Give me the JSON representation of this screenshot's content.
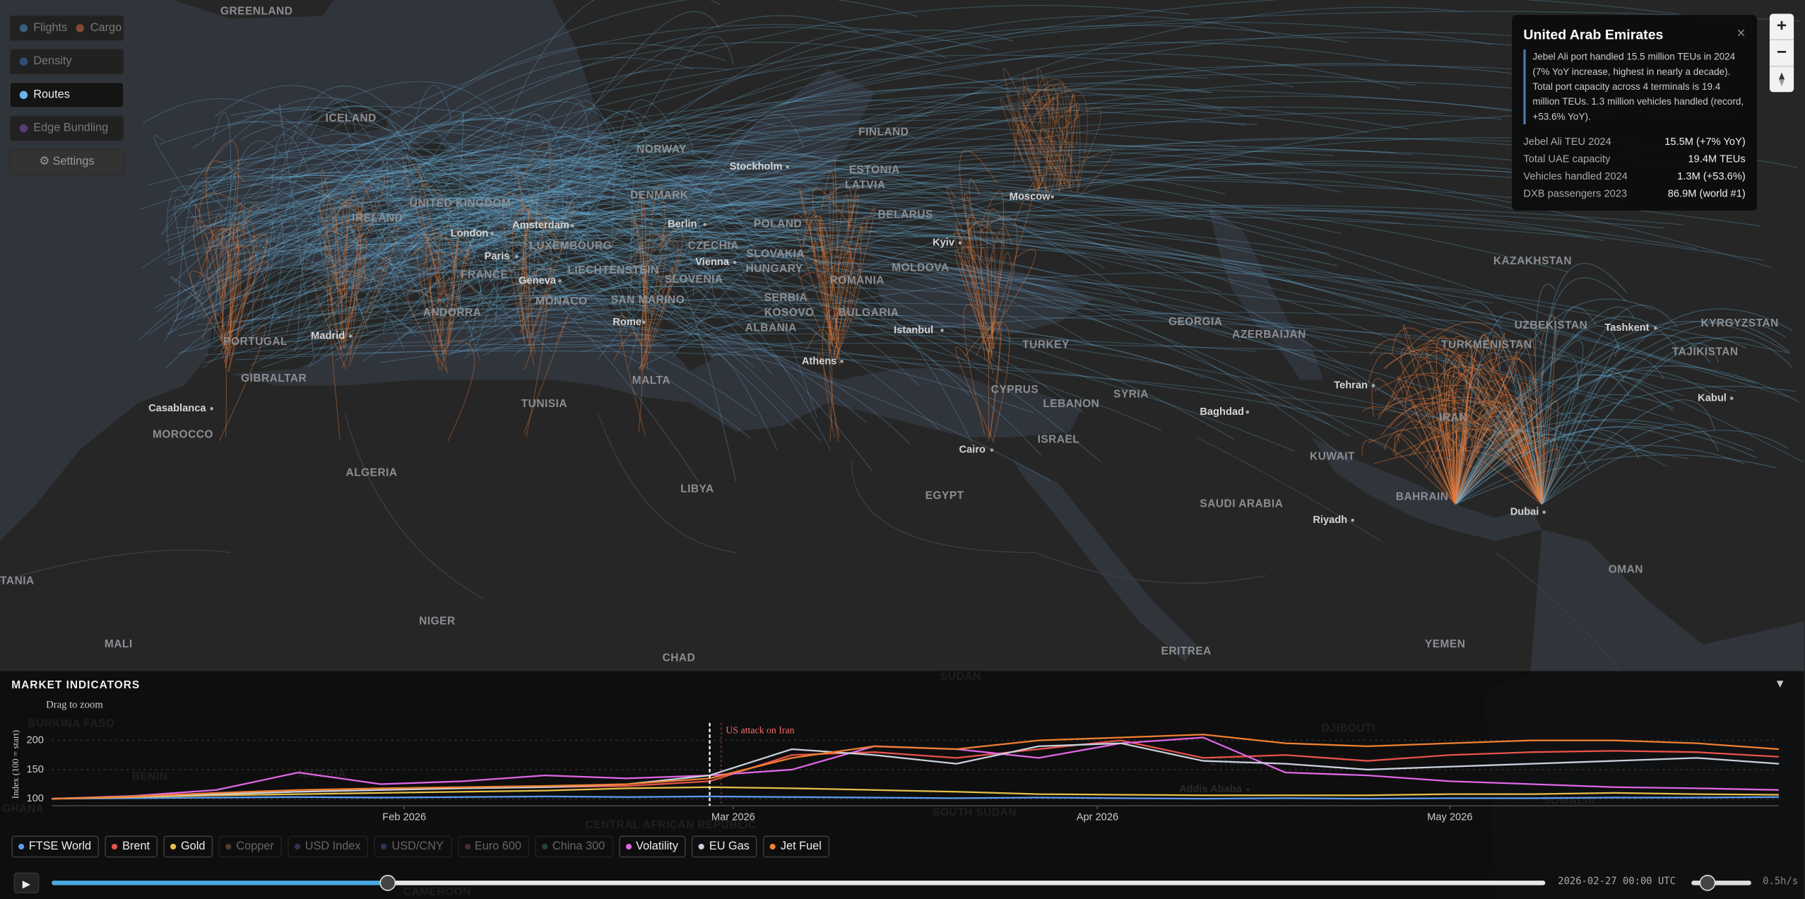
{
  "layers": {
    "rows": [
      [
        {
          "label": "Flights",
          "color": "#4a9fd4",
          "active": false
        },
        {
          "label": "Cargo",
          "color": "#e07a3a",
          "active": false
        }
      ],
      [
        {
          "label": "Density",
          "color": "#3f7fc0",
          "active": false
        }
      ],
      [
        {
          "label": "Routes",
          "color": "#6ab4f0",
          "active": true
        }
      ],
      [
        {
          "label": "Edge Bundling",
          "color": "#8a5ac8",
          "active": false
        }
      ]
    ],
    "settings": "⚙ Settings"
  },
  "map": {
    "countries": [
      "GREENLAND",
      "ICELAND",
      "NORWAY",
      "FINLAND",
      "ESTONIA",
      "LATVIA",
      "DENMARK",
      "UNITED KINGDOM",
      "IRELAND",
      "BELARUS",
      "POLAND",
      "LUXEMBOURG",
      "CZECHIA",
      "SLOVAKIA",
      "LIECHTENSTEIN",
      "HUNGARY",
      "MOLDOVA",
      "FRANCE",
      "SLOVENIA",
      "ROMANIA",
      "MONACO",
      "SAN MARINO",
      "SERBIA",
      "KOSOVO",
      "BULGARIA",
      "ANDORRA",
      "ALBANIA",
      "PORTUGAL",
      "GIBRALTAR",
      "MALTA",
      "TURKEY",
      "GEORGIA",
      "AZERBAIJAN",
      "KAZAKHSTAN",
      "UZBEKISTAN",
      "TURKMENISTAN",
      "KYRGYZSTAN",
      "TAJIKISTAN",
      "CYPRUS",
      "LEBANON",
      "SYRIA",
      "ISRAEL",
      "IRAN",
      "KUWAIT",
      "BAHRAIN",
      "SAUDI ARABIA",
      "OMAN",
      "YEMEN",
      "TUNISIA",
      "MOROCCO",
      "ALGERIA",
      "LIBYA",
      "EGYPT",
      "NIGER",
      "CHAD",
      "MALI",
      "TANIA",
      "ERITREA",
      "SUDAN",
      "BURKINA FASO",
      "NIGERIA",
      "BENIN",
      "GHANA",
      "CENTRAL AFRICAN REPUBLIC",
      "SOUTH SUDAN",
      "ETHIOPIA",
      "DJIBOUTI",
      "SOMALIA",
      "CAMEROON"
    ],
    "cities": [
      "Stockholm",
      "Moscow",
      "London",
      "Amsterdam",
      "Berlin",
      "Paris",
      "Kyiv",
      "Vienna",
      "Geneva",
      "Madrid",
      "Rome",
      "Istanbul",
      "Athens",
      "Casablanca",
      "Tashkent",
      "Tehran",
      "Baghdad",
      "Cairo",
      "Kabul",
      "Riyadh",
      "Dubai",
      "Addis Ababa"
    ]
  },
  "info_panel": {
    "title": "United Arab Emirates",
    "close": "×",
    "description": "Jebel Ali port handled 15.5 million TEUs in 2024 (7% YoY increase, highest in nearly a decade). Total port capacity across 4 terminals is 19.4 million TEUs. 1.3 million vehicles handled (record, +53.6% YoY).",
    "rows": [
      [
        "Jebel Ali TEU 2024",
        "15.5M (+7% YoY)"
      ],
      [
        "Total UAE capacity",
        "19.4M TEUs"
      ],
      [
        "Vehicles handled 2024",
        "1.3M (+53.6%)"
      ],
      [
        "DXB passengers 2023",
        "86.9M (world #1)"
      ]
    ]
  },
  "zoom": {
    "in": "+",
    "out": "−"
  },
  "market": {
    "title": "MARKET INDICATORS",
    "hint": "Drag to zoom",
    "collapse": "▼",
    "y_label": "Index (100 = start)",
    "ylim": [
      88,
      230
    ],
    "yticks": [
      100,
      150,
      200
    ],
    "xlim": [
      0,
      147
    ],
    "xticks": [
      {
        "value": 30,
        "label": "Feb 2026"
      },
      {
        "value": 58,
        "label": "Mar 2026"
      },
      {
        "value": 89,
        "label": "Apr 2026"
      },
      {
        "value": 119,
        "label": "May 2026"
      }
    ],
    "x": [
      0,
      7,
      14,
      21,
      28,
      35,
      42,
      49,
      56,
      63,
      70,
      77,
      84,
      91,
      98,
      105,
      112,
      119,
      126,
      133,
      140,
      147
    ],
    "annotation": {
      "x": 56,
      "text": "US attack on Iran"
    },
    "series": [
      {
        "name": "FTSE World",
        "color": "#5b9bf0",
        "active": true,
        "values": [
          100,
          101,
          102,
          103,
          102,
          103,
          104,
          103,
          104,
          103,
          102,
          101,
          102,
          101,
          100,
          101,
          100,
          101,
          101,
          102,
          102,
          103
        ]
      },
      {
        "name": "Brent",
        "color": "#e8534a",
        "active": true,
        "values": [
          100,
          103,
          108,
          112,
          115,
          118,
          120,
          122,
          130,
          175,
          180,
          170,
          185,
          200,
          170,
          175,
          165,
          175,
          180,
          182,
          180,
          172
        ]
      },
      {
        "name": "Gold",
        "color": "#e3c04a",
        "active": true,
        "values": [
          100,
          103,
          106,
          108,
          110,
          112,
          114,
          118,
          120,
          118,
          115,
          112,
          108,
          107,
          106,
          106,
          106,
          108,
          108,
          110,
          108,
          107
        ]
      },
      {
        "name": "Copper",
        "color": "#b86a4a",
        "active": false
      },
      {
        "name": "USD Index",
        "color": "#5566aa",
        "active": false
      },
      {
        "name": "USD/CNY",
        "color": "#4a6fa8",
        "active": false
      },
      {
        "name": "Euro 600",
        "color": "#a04a5a",
        "active": false
      },
      {
        "name": "China 300",
        "color": "#3c8a6a",
        "active": false
      },
      {
        "name": "Volatility",
        "color": "#e066e6",
        "active": true,
        "values": [
          100,
          105,
          115,
          145,
          125,
          130,
          140,
          135,
          140,
          150,
          190,
          185,
          170,
          195,
          205,
          145,
          140,
          130,
          125,
          120,
          118,
          115
        ]
      },
      {
        "name": "EU Gas",
        "color": "#c8d0dc",
        "active": true,
        "values": [
          100,
          104,
          108,
          112,
          115,
          118,
          120,
          125,
          140,
          185,
          175,
          160,
          190,
          195,
          165,
          160,
          150,
          155,
          160,
          165,
          170,
          160
        ]
      },
      {
        "name": "Jet Fuel",
        "color": "#f08030",
        "active": true,
        "values": [
          100,
          104,
          110,
          115,
          118,
          120,
          122,
          125,
          135,
          170,
          190,
          185,
          200,
          205,
          210,
          195,
          190,
          195,
          200,
          200,
          195,
          185
        ]
      }
    ]
  },
  "timeline": {
    "play": "▶",
    "time": "2026-02-27 00:00 UTC",
    "speed": "0.5h/s"
  }
}
